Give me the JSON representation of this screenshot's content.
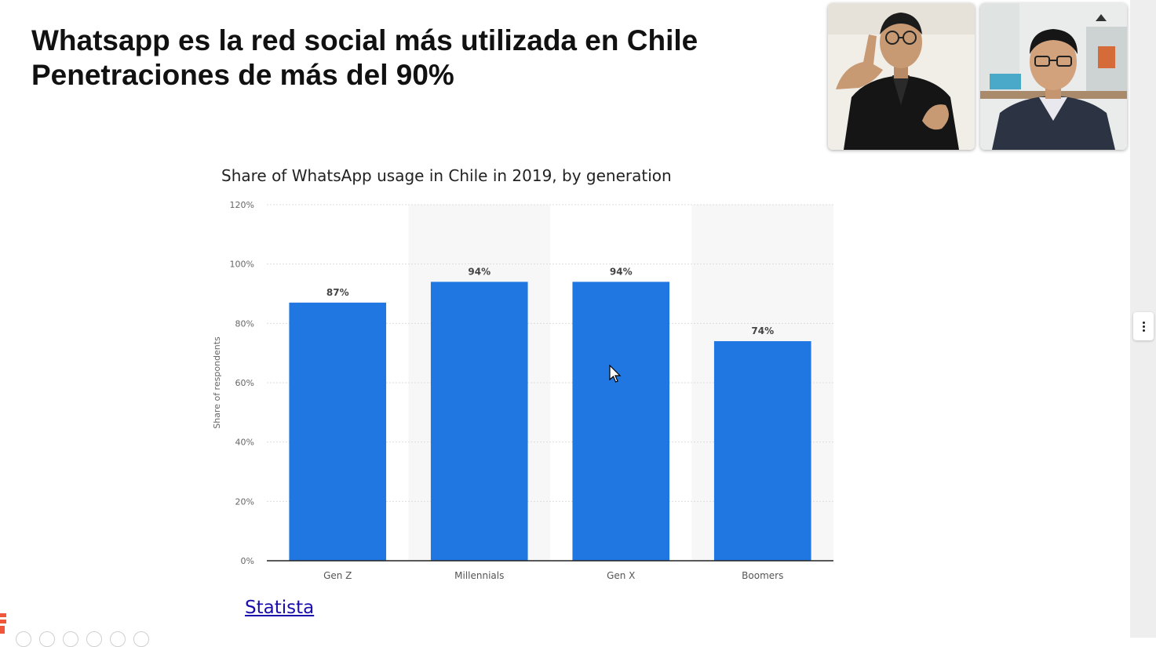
{
  "slide": {
    "title_line1": "Whatsapp es la red social más utilizada en Chile",
    "title_line2": "Penetraciones de más del 90%",
    "source_link": "Statista"
  },
  "colors": {
    "bar": "#2177e2",
    "band": "#f7f7f7",
    "grid": "#dddddd",
    "axis": "#222222",
    "link": "#1a0dab"
  },
  "participants": [
    {
      "name": "",
      "icon": "participant-video-1"
    },
    {
      "name": "",
      "icon": "participant-video-2"
    }
  ],
  "chart_data": {
    "type": "bar",
    "title": "Share of WhatsApp usage in Chile in 2019, by generation",
    "xlabel": "",
    "ylabel": "Share of respondents",
    "categories": [
      "Gen Z",
      "Millennials",
      "Gen X",
      "Boomers"
    ],
    "values": [
      87,
      94,
      94,
      74
    ],
    "value_labels": [
      "87%",
      "94%",
      "94%",
      "74%"
    ],
    "yticks": [
      "0%",
      "20%",
      "40%",
      "60%",
      "80%",
      "100%",
      "120%"
    ],
    "ylim": [
      0,
      120
    ],
    "grid": true,
    "legend": "none"
  }
}
